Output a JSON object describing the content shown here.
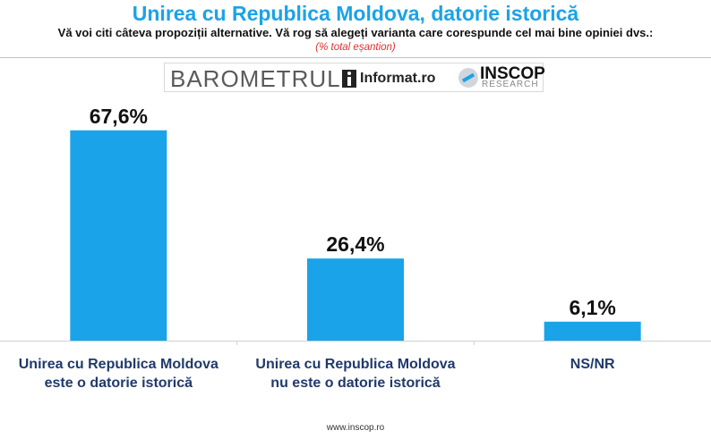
{
  "header": {
    "title": "Unirea cu Republica Moldova, datorie istorică",
    "subtitle": "Vă voi citi câteva propoziții alternative. Vă rog să alegeți varianta care corespunde cel mai bine opiniei dvs.:",
    "note": "(% total eșantion)"
  },
  "logos": {
    "barometrul": "BAROMETRUL",
    "informat": "Informat.ro",
    "inscop": "INSCOP",
    "research": "RESEARCH"
  },
  "colors": {
    "bar": "#1aa3e8",
    "title": "#1aa3e8",
    "note": "#e03030"
  },
  "chart_data": {
    "type": "bar",
    "categories": [
      [
        "Unirea cu Republica Moldova",
        "este o datorie istorică"
      ],
      [
        "Unirea cu Republica Moldova",
        "nu este o datorie istorică"
      ],
      [
        "NS/NR"
      ]
    ],
    "values": [
      67.6,
      26.4,
      6.1
    ],
    "value_labels": [
      "67,6%",
      "26,4%",
      "6,1%"
    ],
    "ylim": [
      0,
      75
    ],
    "grid": false
  },
  "footer": {
    "url": "www.inscop.ro"
  }
}
